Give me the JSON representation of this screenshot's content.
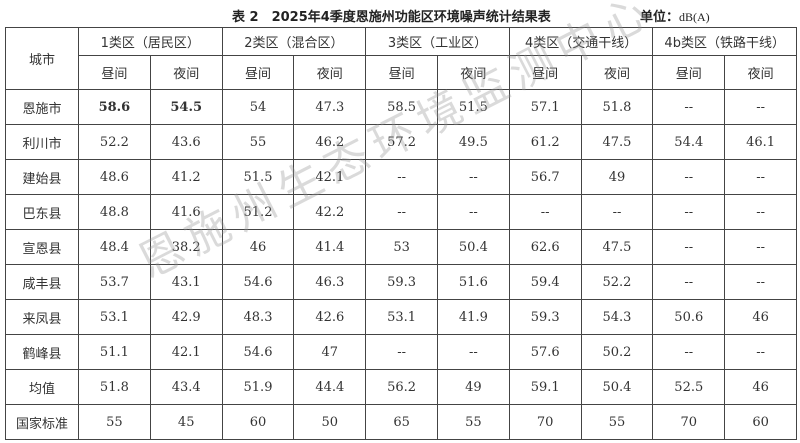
{
  "title": "表 2　2025年4季度恩施州功能区环境噪声统计结果表",
  "unit_label": "单位：",
  "unit_value": "dB(A)",
  "watermark": "恩施州生态环境监测中心",
  "header": {
    "city": "城市",
    "groups": [
      "1类区（居民区）",
      "2类区（混合区）",
      "3类区（工业区）",
      "4类区（交通干线）",
      "4b类区（铁路干线）"
    ],
    "day": "昼间",
    "night": "夜间"
  },
  "rows": [
    {
      "city": "恩施市",
      "values": [
        "58.6",
        "54.5",
        "54",
        "47.3",
        "58.5",
        "51.5",
        "57.1",
        "51.8",
        "--",
        "--"
      ]
    },
    {
      "city": "利川市",
      "values": [
        "52.2",
        "43.6",
        "55",
        "46.2",
        "57.2",
        "49.5",
        "61.2",
        "47.5",
        "54.4",
        "46.1"
      ]
    },
    {
      "city": "建始县",
      "values": [
        "48.6",
        "41.2",
        "51.5",
        "42.1",
        "--",
        "--",
        "56.7",
        "49",
        "--",
        "--"
      ]
    },
    {
      "city": "巴东县",
      "values": [
        "48.8",
        "41.6",
        "51.2",
        "42.2",
        "--",
        "--",
        "--",
        "--",
        "--",
        "--"
      ]
    },
    {
      "city": "宣恩县",
      "values": [
        "48.4",
        "38.2",
        "46",
        "41.4",
        "53",
        "50.4",
        "62.6",
        "47.5",
        "--",
        "--"
      ]
    },
    {
      "city": "咸丰县",
      "values": [
        "53.7",
        "43.1",
        "54.6",
        "46.3",
        "59.3",
        "51.6",
        "59.4",
        "52.2",
        "--",
        "--"
      ]
    },
    {
      "city": "来凤县",
      "values": [
        "53.1",
        "42.9",
        "48.3",
        "42.6",
        "53.1",
        "41.9",
        "59.3",
        "54.3",
        "50.6",
        "46"
      ]
    },
    {
      "city": "鹤峰县",
      "values": [
        "51.1",
        "42.1",
        "54.6",
        "47",
        "--",
        "--",
        "57.6",
        "50.2",
        "--",
        "--"
      ]
    },
    {
      "city": "均值",
      "values": [
        "51.8",
        "43.4",
        "51.9",
        "44.4",
        "56.2",
        "49",
        "59.1",
        "50.4",
        "52.5",
        "46"
      ]
    },
    {
      "city": "国家标准",
      "values": [
        "55",
        "45",
        "60",
        "50",
        "65",
        "55",
        "70",
        "55",
        "70",
        "60"
      ]
    }
  ]
}
